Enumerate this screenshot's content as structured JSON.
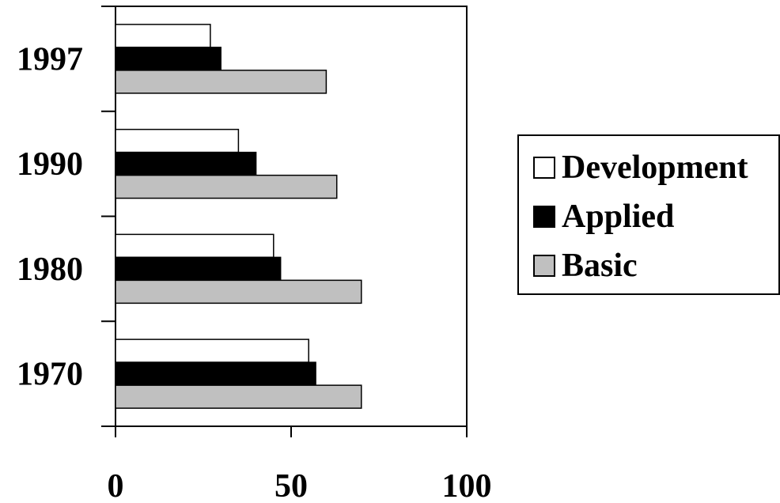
{
  "chart_data": {
    "type": "bar",
    "orientation": "horizontal",
    "categories": [
      "1997",
      "1990",
      "1980",
      "1970"
    ],
    "series": [
      {
        "name": "Development",
        "color": "#ffffff",
        "values": [
          27,
          35,
          45,
          55
        ]
      },
      {
        "name": "Applied",
        "color": "#000000",
        "values": [
          30,
          40,
          47,
          57
        ]
      },
      {
        "name": "Basic",
        "color": "#c0c0c0",
        "values": [
          60,
          63,
          70,
          70
        ]
      }
    ],
    "xlim": [
      0,
      100
    ],
    "xticks": [
      "0",
      "50",
      "100"
    ],
    "legend_position": "right",
    "grid": false
  }
}
